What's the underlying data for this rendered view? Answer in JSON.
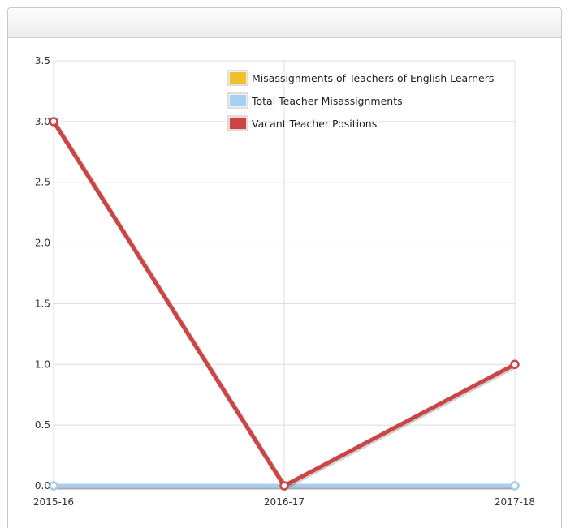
{
  "chart_data": {
    "type": "line",
    "categories": [
      "2015-16",
      "2016-17",
      "2017-18"
    ],
    "ylim": [
      0,
      3.5
    ],
    "yticks": [
      "0.0",
      "0.5",
      "1.0",
      "1.5",
      "2.0",
      "2.5",
      "3.0",
      "3.5"
    ],
    "grid": true,
    "legend_position": "top-right",
    "series": [
      {
        "name": "Misassignments of Teachers of English Learners",
        "values": [
          0,
          0,
          0
        ],
        "color": "#f0c02c"
      },
      {
        "name": "Total Teacher Misassignments",
        "values": [
          0,
          0,
          0
        ],
        "color": "#a9cfee"
      },
      {
        "name": "Vacant Teacher Positions",
        "values": [
          3,
          0,
          1
        ],
        "color": "#cc4545"
      }
    ]
  }
}
